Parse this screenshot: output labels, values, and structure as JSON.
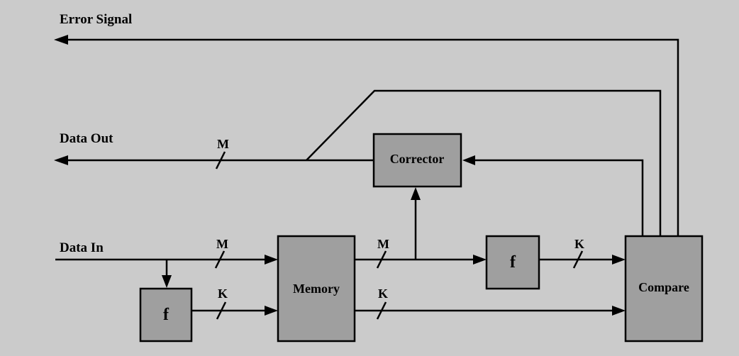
{
  "signals": {
    "error_signal": "Error Signal",
    "data_out": "Data Out",
    "data_in": "Data In"
  },
  "blocks": {
    "corrector": "Corrector",
    "memory": "Memory",
    "compare": "Compare",
    "f_input": "f",
    "f_output": "f"
  },
  "bus_widths": {
    "data_out": "M",
    "data_in": "M",
    "memory_out_data": "M",
    "f_input_out": "K",
    "memory_out_check": "K",
    "f_output_out": "K"
  }
}
